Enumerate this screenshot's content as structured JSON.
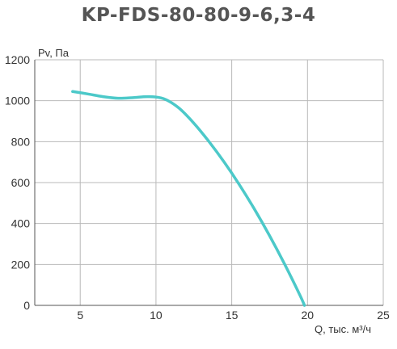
{
  "chart_data": {
    "type": "line",
    "title": "KP-FDS-80-80-9-6,3-4",
    "xlabel": "Q, тыс. м³/ч",
    "ylabel": "Pv, Па",
    "xlim": [
      2,
      25
    ],
    "ylim": [
      0,
      1200
    ],
    "xticks": [
      5,
      10,
      15,
      20,
      25
    ],
    "yticks": [
      0,
      200,
      400,
      600,
      800,
      1000,
      1200
    ],
    "grid": true,
    "series": [
      {
        "color": "#4cc9c9",
        "x": [
          4.5,
          5.5,
          6.5,
          7.5,
          8.5,
          9.5,
          10.5,
          11.5,
          12.5,
          13.5,
          14.5,
          15.5,
          16.5,
          17.5,
          18.5,
          19.5,
          19.8
        ],
        "y": [
          1045,
          1033,
          1020,
          1012,
          1015,
          1020,
          1010,
          965,
          890,
          800,
          700,
          590,
          470,
          340,
          200,
          50,
          0
        ]
      }
    ]
  }
}
